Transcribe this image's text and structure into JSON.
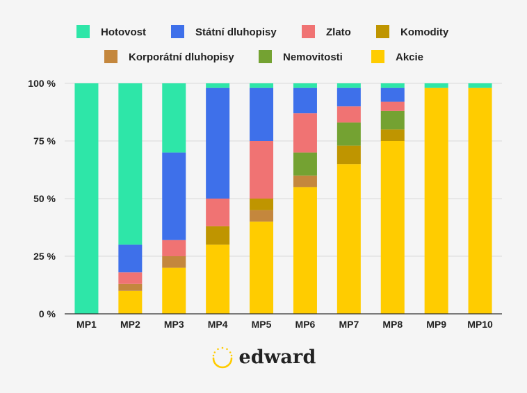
{
  "chart_data": {
    "type": "bar",
    "stacked": true,
    "normalized": true,
    "categories": [
      "MP1",
      "MP2",
      "MP3",
      "MP4",
      "MP5",
      "MP6",
      "MP7",
      "MP8",
      "MP9",
      "MP10"
    ],
    "y_ticks": [
      "0 %",
      "25 %",
      "50 %",
      "75 %",
      "100 %"
    ],
    "ylim": [
      0,
      100
    ],
    "grid": true,
    "legend_position": "top",
    "series": [
      {
        "name": "Akcie",
        "color": "#ffcc00",
        "values": [
          0,
          10,
          20,
          30,
          40,
          55,
          65,
          75,
          98,
          98
        ]
      },
      {
        "name": "Korporátní dluhopisy",
        "color": "#c4873d",
        "values": [
          0,
          3,
          5,
          0,
          5,
          5,
          0,
          0,
          0,
          0
        ]
      },
      {
        "name": "Komodity",
        "color": "#bf9500",
        "values": [
          0,
          0,
          0,
          8,
          5,
          0,
          8,
          5,
          0,
          0
        ]
      },
      {
        "name": "Nemovitosti",
        "color": "#74a232",
        "values": [
          0,
          0,
          0,
          0,
          0,
          10,
          10,
          8,
          0,
          0
        ]
      },
      {
        "name": "Zlato",
        "color": "#f07373",
        "values": [
          0,
          5,
          7,
          12,
          25,
          17,
          7,
          4,
          0,
          0
        ]
      },
      {
        "name": "Státní dluhopisy",
        "color": "#3e70ea",
        "values": [
          0,
          12,
          38,
          48,
          23,
          11,
          8,
          6,
          0,
          0
        ]
      },
      {
        "name": "Hotovost",
        "color": "#2ee6a8",
        "values": [
          100,
          70,
          30,
          2,
          2,
          2,
          2,
          2,
          2,
          2
        ]
      }
    ],
    "legend_order": [
      "Hotovost",
      "Státní dluhopisy",
      "Zlato",
      "Komodity",
      "Korporátní dluhopisy",
      "Nemovitosti",
      "Akcie"
    ]
  },
  "brand": {
    "logo_text": "edward",
    "accent": "#ffcc00"
  }
}
